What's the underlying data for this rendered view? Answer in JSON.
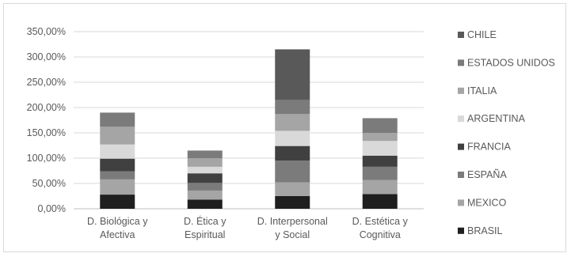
{
  "chart_data": {
    "type": "bar",
    "stacked": true,
    "categories": [
      [
        "D. Biológica y",
        "Afectiva"
      ],
      [
        "D. Ética y",
        "Espiritual"
      ],
      [
        "D. Interpersonal",
        "y Social"
      ],
      [
        "D. Estética y",
        "Cognitiva"
      ]
    ],
    "y_ticks": [
      "0,00%",
      "50,00%",
      "100,00%",
      "150,00%",
      "200,00%",
      "250,00%",
      "300,00%",
      "350,00%"
    ],
    "ylim": [
      0,
      350
    ],
    "grid": true,
    "legend_position": "right",
    "series": [
      {
        "name": "BRASIL",
        "color": "#1f1f1f",
        "values": [
          28,
          18,
          25,
          29
        ]
      },
      {
        "name": "MEXICO",
        "color": "#a5a5a5",
        "values": [
          30,
          18,
          27,
          28
        ]
      },
      {
        "name": "ESPAÑA",
        "color": "#7b7b7b",
        "values": [
          16,
          15,
          43,
          26
        ]
      },
      {
        "name": "FRANCIA",
        "color": "#404040",
        "values": [
          25,
          19,
          29,
          22
        ]
      },
      {
        "name": "ARGENTINA",
        "color": "#d9d9d9",
        "values": [
          28,
          13,
          30,
          29
        ]
      },
      {
        "name": "ITALIA",
        "color": "#a5a5a5",
        "values": [
          35,
          17,
          33,
          16
        ]
      },
      {
        "name": "ESTADOS UNIDOS",
        "color": "#7b7b7b",
        "values": [
          28,
          15,
          28,
          29
        ]
      },
      {
        "name": "CHILE",
        "color": "#595959",
        "values": [
          0,
          0,
          100,
          0
        ]
      }
    ]
  }
}
